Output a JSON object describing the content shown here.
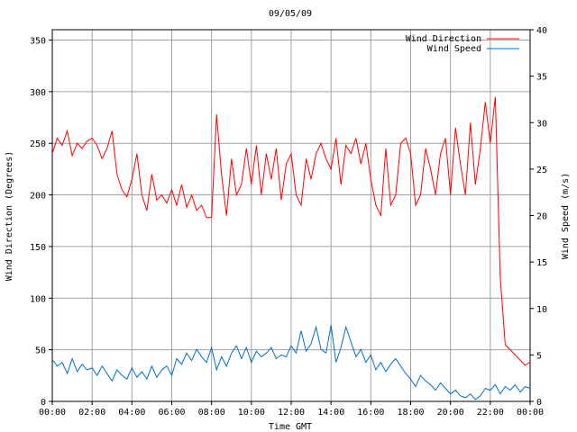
{
  "chart_data": {
    "type": "line",
    "title": "09/05/09",
    "xlabel": "Time GMT",
    "ylabel_left": "Wind Direction (Degrees)",
    "ylabel_right": "Wind Speed (m/s)",
    "x_ticks": [
      "00:00",
      "02:00",
      "04:00",
      "06:00",
      "08:00",
      "10:00",
      "12:00",
      "14:00",
      "16:00",
      "18:00",
      "20:00",
      "22:00",
      "00:00"
    ],
    "y_left_ticks": [
      "0",
      "50",
      "100",
      "150",
      "200",
      "250",
      "300",
      "350"
    ],
    "y_right_ticks": [
      "0",
      "5",
      "10",
      "15",
      "20",
      "25",
      "30",
      "35",
      "40"
    ],
    "xlim_hours": [
      0,
      24
    ],
    "ylim_left": [
      0,
      360
    ],
    "ylim_right": [
      0,
      40
    ],
    "grid": true,
    "legend_position": "top-right",
    "series": [
      {
        "name": "Wind Direction",
        "axis": "left",
        "color": "#ff0000",
        "x_hours": [
          0,
          0.25,
          0.5,
          0.75,
          1,
          1.25,
          1.5,
          1.75,
          2,
          2.25,
          2.5,
          2.75,
          3,
          3.25,
          3.5,
          3.75,
          4,
          4.25,
          4.5,
          4.75,
          5,
          5.25,
          5.5,
          5.75,
          6,
          6.25,
          6.5,
          6.75,
          7,
          7.25,
          7.5,
          7.75,
          8,
          8.25,
          8.5,
          8.75,
          9,
          9.25,
          9.5,
          9.75,
          10,
          10.25,
          10.5,
          10.75,
          11,
          11.25,
          11.5,
          11.75,
          12,
          12.25,
          12.5,
          12.75,
          13,
          13.25,
          13.5,
          13.75,
          14,
          14.25,
          14.5,
          14.75,
          15,
          15.25,
          15.5,
          15.75,
          16,
          16.25,
          16.5,
          16.75,
          17,
          17.25,
          17.5,
          17.75,
          18,
          18.25,
          18.5,
          18.75,
          19,
          19.25,
          19.5,
          19.75,
          20,
          20.25,
          20.5,
          20.75,
          21,
          21.25,
          21.5,
          21.75,
          22,
          22.25,
          22.5,
          22.75,
          23,
          23.25,
          23.5,
          23.75,
          24
        ],
        "values": [
          240,
          255,
          248,
          262,
          238,
          250,
          245,
          252,
          255,
          248,
          235,
          245,
          262,
          220,
          205,
          198,
          215,
          240,
          200,
          185,
          220,
          195,
          200,
          192,
          205,
          190,
          210,
          188,
          200,
          185,
          190,
          178,
          178,
          278,
          220,
          180,
          235,
          200,
          210,
          245,
          210,
          248,
          200,
          240,
          215,
          245,
          195,
          230,
          240,
          200,
          190,
          235,
          215,
          240,
          250,
          235,
          225,
          255,
          210,
          248,
          240,
          255,
          230,
          250,
          215,
          190,
          180,
          245,
          190,
          200,
          250,
          255,
          240,
          190,
          200,
          245,
          225,
          200,
          240,
          255,
          200,
          265,
          230,
          200,
          270,
          210,
          245,
          290,
          250,
          295,
          120,
          55,
          50,
          45,
          40,
          35,
          38
        ]
      },
      {
        "name": "Wind Speed",
        "axis": "right",
        "color": "#0070c8",
        "x_hours": [
          0,
          0.25,
          0.5,
          0.75,
          1,
          1.25,
          1.5,
          1.75,
          2,
          2.25,
          2.5,
          2.75,
          3,
          3.25,
          3.5,
          3.75,
          4,
          4.25,
          4.5,
          4.75,
          5,
          5.25,
          5.5,
          5.75,
          6,
          6.25,
          6.5,
          6.75,
          7,
          7.25,
          7.5,
          7.75,
          8,
          8.25,
          8.5,
          8.75,
          9,
          9.25,
          9.5,
          9.75,
          10,
          10.25,
          10.5,
          10.75,
          11,
          11.25,
          11.5,
          11.75,
          12,
          12.25,
          12.5,
          12.75,
          13,
          13.25,
          13.5,
          13.75,
          14,
          14.25,
          14.5,
          14.75,
          15,
          15.25,
          15.5,
          15.75,
          16,
          16.25,
          16.5,
          16.75,
          17,
          17.25,
          17.5,
          17.75,
          18,
          18.25,
          18.5,
          18.75,
          19,
          19.25,
          19.5,
          19.75,
          20,
          20.25,
          20.5,
          20.75,
          21,
          21.25,
          21.5,
          21.75,
          22,
          22.25,
          22.5,
          22.75,
          23,
          23.25,
          23.5,
          23.75,
          24
        ],
        "values": [
          4.5,
          3.8,
          4.2,
          3.0,
          4.6,
          3.2,
          4.0,
          3.4,
          3.6,
          2.8,
          3.8,
          3.0,
          2.2,
          3.4,
          2.8,
          2.4,
          3.6,
          2.6,
          3.2,
          2.4,
          3.8,
          2.6,
          3.4,
          3.8,
          2.8,
          4.6,
          4.0,
          5.2,
          4.4,
          5.6,
          4.8,
          4.2,
          5.8,
          3.4,
          4.8,
          3.8,
          5.2,
          6.0,
          4.6,
          5.8,
          4.2,
          5.4,
          4.8,
          5.2,
          5.8,
          4.6,
          5.0,
          4.8,
          6.0,
          5.2,
          7.6,
          5.4,
          6.2,
          8.0,
          5.6,
          5.2,
          8.2,
          4.2,
          5.8,
          8.0,
          6.4,
          4.8,
          5.6,
          4.2,
          5.0,
          3.4,
          4.2,
          3.2,
          4.0,
          4.6,
          3.8,
          3.0,
          2.4,
          1.6,
          2.8,
          2.2,
          1.8,
          1.2,
          2.0,
          1.4,
          0.8,
          1.2,
          0.6,
          0.4,
          0.8,
          0.2,
          0.6,
          1.4,
          1.2,
          1.8,
          0.8,
          1.6,
          1.2,
          1.8,
          1.0,
          1.6,
          1.4
        ]
      }
    ]
  }
}
